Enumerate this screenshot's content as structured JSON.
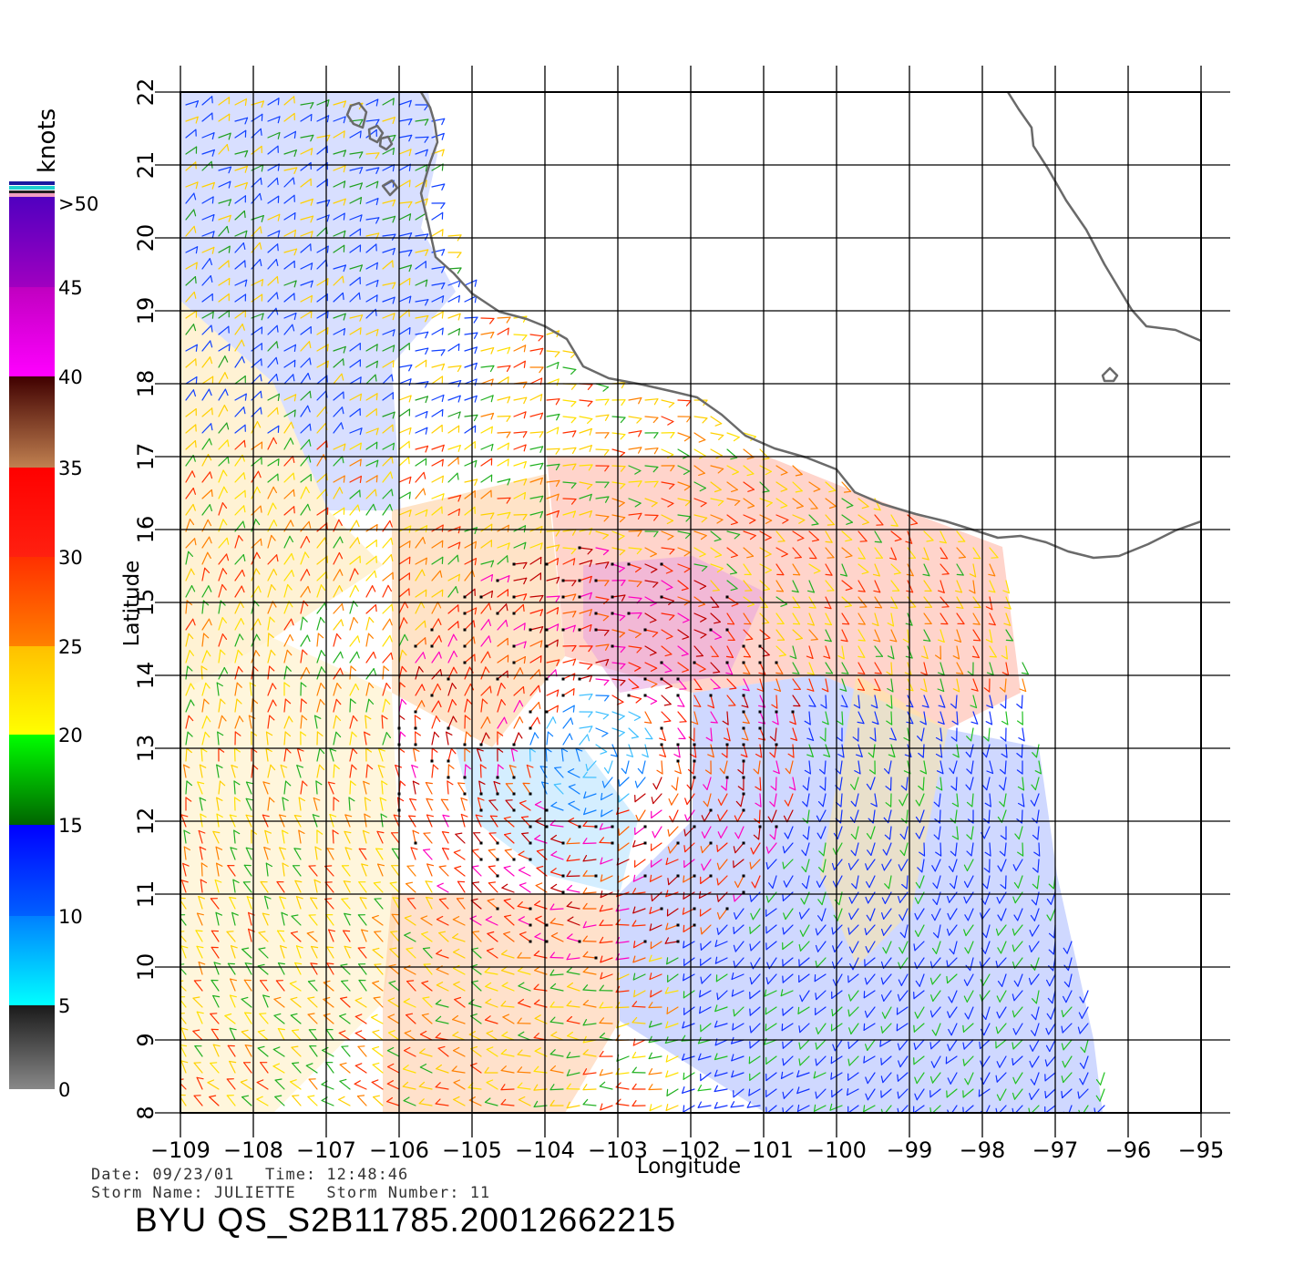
{
  "map": {
    "x_axis_label": "Longitude",
    "y_axis_label": "Latitude",
    "lon_ticks": [
      "−109",
      "−108",
      "−107",
      "−106",
      "−105",
      "−104",
      "−103",
      "−102",
      "−101",
      "−100",
      "−99",
      "−98",
      "−97",
      "−96",
      "−95"
    ],
    "lat_ticks": [
      "8",
      "9",
      "10",
      "11",
      "12",
      "13",
      "14",
      "15",
      "16",
      "17",
      "18",
      "19",
      "20",
      "21",
      "22"
    ],
    "lon_range": [
      -109,
      -95
    ],
    "lat_range": [
      8,
      22
    ],
    "grid": true
  },
  "colorbar": {
    "unit_label": "knots",
    "tick_labels": [
      "0",
      "5",
      "10",
      "15",
      "20",
      "25",
      "30",
      "35",
      "40",
      "45",
      ">50"
    ],
    "colors": {
      "0-5": [
        "#888888",
        "#1a1a1a"
      ],
      "5-10": [
        "#00ffff",
        "#0080ff"
      ],
      "10-15": [
        "#0060ff",
        "#0000ff"
      ],
      "15-20": [
        "#006400",
        "#00ff00"
      ],
      "20-25": [
        "#ffff00",
        "#ffc000"
      ],
      "25-30": [
        "#ff8000",
        "#ff3000"
      ],
      "30-35": [
        "#ff2010",
        "#ff0000"
      ],
      "35-40": [
        "#c08050",
        "#400000"
      ],
      "40-45": [
        "#ff00ff",
        "#c000c0"
      ],
      "45-50": [
        "#a000c0",
        "#5000c0"
      ]
    }
  },
  "info": {
    "date_line": "Date: 09/23/01   Time: 12:48:46",
    "storm_line": "Storm Name: JULIETTE   Storm Number: 11"
  },
  "product_id": "BYU QS_S2B11785.20012662215"
}
